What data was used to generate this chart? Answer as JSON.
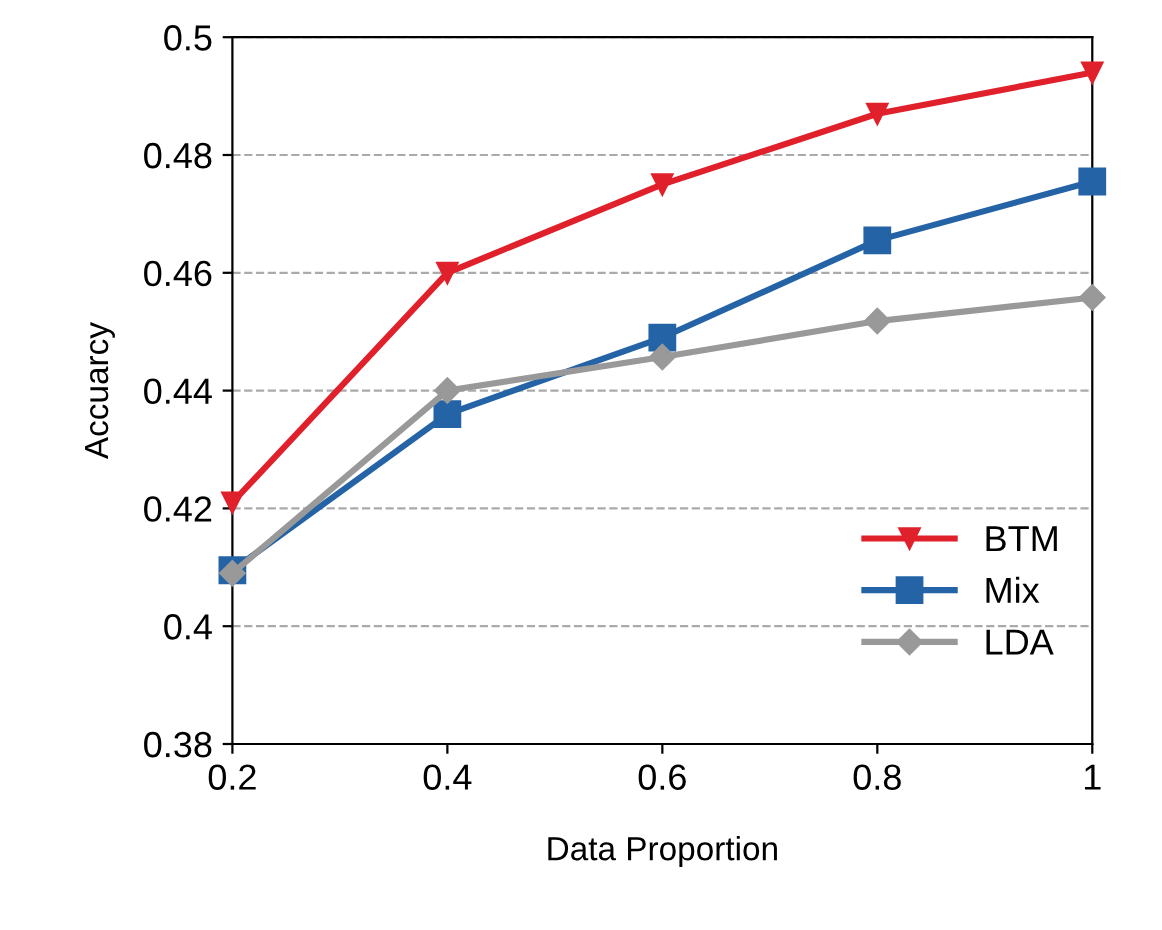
{
  "chart_data": {
    "type": "line",
    "xlabel": "Data Proportion",
    "ylabel": "Accuarcy",
    "x": [
      0.2,
      0.4,
      0.6,
      0.8,
      1
    ],
    "series": [
      {
        "name": "BTM",
        "color": "#e0202a",
        "marker": "triangle_down",
        "values": [
          0.421,
          0.46,
          0.475,
          0.487,
          0.494
        ]
      },
      {
        "name": "Mix",
        "color": "#2463a6",
        "marker": "square",
        "values": [
          0.4095,
          0.436,
          0.449,
          0.4655,
          0.4755
        ]
      },
      {
        "name": "LDA",
        "color": "#999999",
        "marker": "diamond",
        "values": [
          0.409,
          0.44,
          0.4457,
          0.4518,
          0.4558
        ]
      }
    ],
    "xlim": [
      0.2,
      1
    ],
    "xticks": [
      0.2,
      0.4,
      0.6,
      0.8,
      1
    ],
    "ylim": [
      0.38,
      0.5
    ],
    "yticks": [
      0.38,
      0.4,
      0.42,
      0.44,
      0.46,
      0.48,
      0.5
    ],
    "grid": "y",
    "legend": "bottom right",
    "line_style": "solid"
  }
}
